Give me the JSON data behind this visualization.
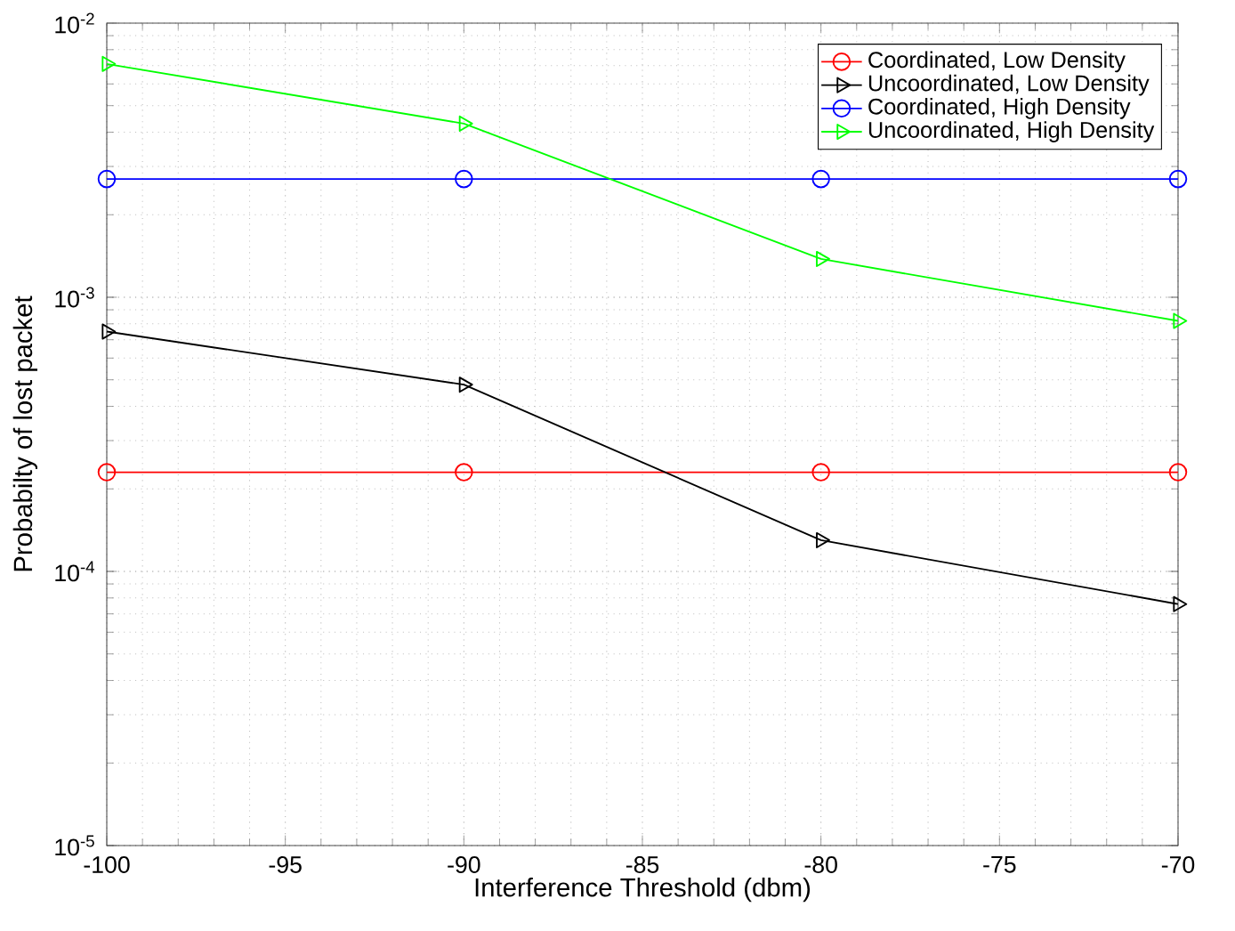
{
  "chart_data": {
    "type": "line",
    "xlabel": "Interference Threshold (dbm)",
    "ylabel": "Probabilty of lost packet",
    "x": [
      -100,
      -90,
      -80,
      -70
    ],
    "series": [
      {
        "name": "Coordinated, Low Density",
        "color": "#ff0000",
        "marker": "circle",
        "values": [
          0.00023,
          0.00023,
          0.00023,
          0.00023
        ]
      },
      {
        "name": "Uncoordinated, Low Density",
        "color": "#000000",
        "marker": "triangle",
        "values": [
          0.00075,
          0.00048,
          0.00013,
          7.6e-05
        ]
      },
      {
        "name": "Coordinated, High Density",
        "color": "#0000ff",
        "marker": "circle",
        "values": [
          0.0027,
          0.0027,
          0.0027,
          0.0027
        ]
      },
      {
        "name": "Uncoordinated, High Density",
        "color": "#00ff00",
        "marker": "triangle",
        "values": [
          0.0071,
          0.0043,
          0.00138,
          0.00082
        ]
      }
    ],
    "log": "y",
    "xlim": [
      -100,
      -70
    ],
    "ylim": [
      1e-05,
      0.01
    ],
    "xticks": [
      -100,
      -95,
      -90,
      -85,
      -80,
      -75,
      -70
    ],
    "yticks": [
      {
        "value": 1e-05,
        "label": "10$^{-5}$"
      },
      {
        "value": 0.0001,
        "label": "10$^{-4}$"
      },
      {
        "value": 0.001,
        "label": "10$^{-3}$"
      },
      {
        "value": 0.01,
        "label": "10$^{-2}$"
      }
    ],
    "grid": true,
    "legend": "top right",
    "line_style": "solid"
  }
}
